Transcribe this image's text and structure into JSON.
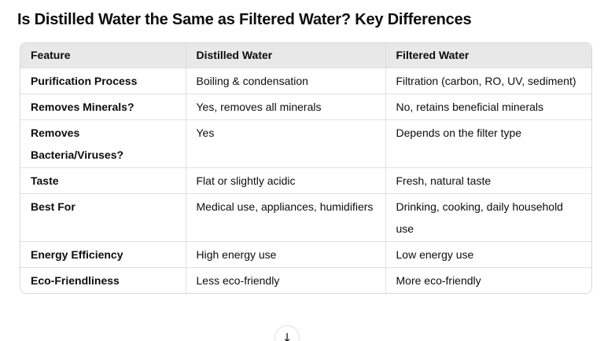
{
  "page": {
    "title": "Is Distilled Water the Same as Filtered Water? Key Differences"
  },
  "table": {
    "columns": [
      "Feature",
      "Distilled Water",
      "Filtered Water"
    ],
    "rows": [
      {
        "feature": "Purification Process",
        "distilled": "Boiling & condensation",
        "filtered": "Filtration (carbon, RO, UV, sediment)"
      },
      {
        "feature": "Removes Minerals?",
        "distilled": "Yes, removes all minerals",
        "filtered": "No, retains beneficial minerals"
      },
      {
        "feature": "Removes Bacteria/Viruses?",
        "distilled": "Yes",
        "filtered": "Depends on the filter type"
      },
      {
        "feature": "Taste",
        "distilled": "Flat or slightly acidic",
        "filtered": "Fresh, natural taste"
      },
      {
        "feature": "Best For",
        "distilled": "Medical use, appliances, humidifiers",
        "filtered": "Drinking, cooking, daily household use"
      },
      {
        "feature": "Energy Efficiency",
        "distilled": "High energy use",
        "filtered": "Low energy use"
      },
      {
        "feature": "Eco-Friendliness",
        "distilled": "Less eco-friendly",
        "filtered": "More eco-friendly"
      }
    ]
  },
  "scroll_button": {
    "glyph": "↓"
  },
  "colors": {
    "header_bg": "#e8e8e8",
    "outer_border": "#d7d7d7",
    "inner_border": "#e1e1e1",
    "text": "#0d0d0d"
  }
}
